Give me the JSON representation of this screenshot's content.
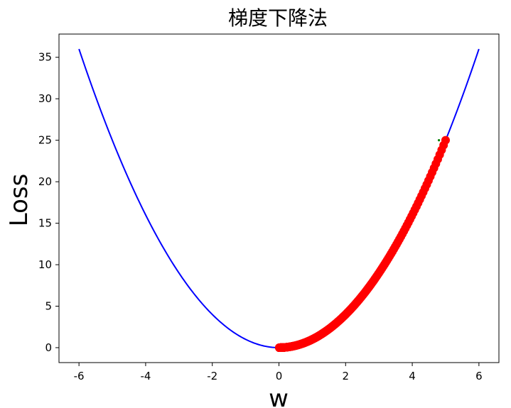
{
  "chart_data": {
    "type": "line",
    "title": "梯度下降法",
    "xlabel": "w",
    "ylabel": "Loss",
    "xlim": [
      -6.6,
      6.6
    ],
    "ylim": [
      -1.8,
      37.8
    ],
    "xticks": [
      -6,
      -4,
      -2,
      0,
      2,
      4,
      6
    ],
    "yticks": [
      0,
      5,
      10,
      15,
      20,
      25,
      30,
      35
    ],
    "grid": false,
    "legend": "none",
    "series": [
      {
        "kind": "line",
        "color": "#0000ff",
        "x_range": [
          -6,
          6
        ],
        "function": "w^2",
        "sample_points": [
          [
            -6,
            36
          ],
          [
            -4,
            16
          ],
          [
            -2,
            4
          ],
          [
            0,
            0
          ],
          [
            2,
            4
          ],
          [
            4,
            16
          ],
          [
            6,
            36
          ]
        ]
      },
      {
        "kind": "scatter",
        "color": "#ff0000",
        "function": "w^2",
        "start_w": 5.0,
        "learning_rate": 0.001,
        "steps": 3000
      },
      {
        "kind": "point",
        "color": "#008000",
        "x": 4.8,
        "y": 25
      }
    ]
  }
}
